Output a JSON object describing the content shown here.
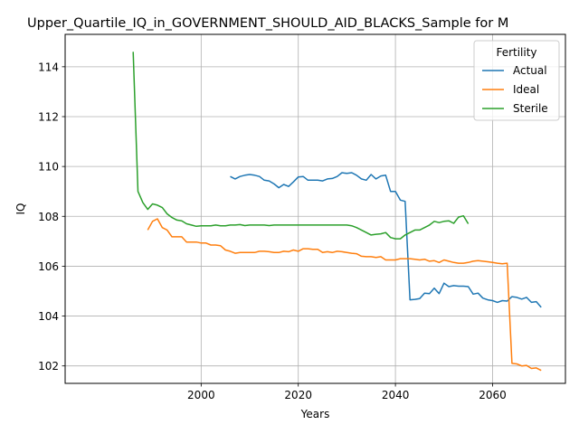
{
  "chart_data": {
    "type": "line",
    "title": "Upper_Quartile_IQ_in_GOVERNMENT_SHOULD_AID_BLACKS_Sample for M",
    "xlabel": "Years",
    "ylabel": "IQ",
    "xlim": [
      1972,
      2075
    ],
    "ylim": [
      101.3,
      115.3
    ],
    "xticks": [
      2000,
      2020,
      2040,
      2060
    ],
    "yticks": [
      102,
      104,
      106,
      108,
      110,
      112,
      114
    ],
    "grid": true,
    "legend": {
      "title": "Fertility",
      "placement": "top-right"
    },
    "series": [
      {
        "name": "Actual",
        "color": "#1f77b4",
        "x": [
          2006,
          2007,
          2008,
          2009,
          2010,
          2011,
          2012,
          2013,
          2014,
          2015,
          2016,
          2017,
          2018,
          2019,
          2020,
          2021,
          2022,
          2023,
          2024,
          2025,
          2026,
          2027,
          2028,
          2029,
          2030,
          2031,
          2032,
          2033,
          2034,
          2035,
          2036,
          2037,
          2038,
          2039,
          2040,
          2041,
          2042,
          2043,
          2044,
          2045,
          2046,
          2047,
          2048,
          2049,
          2050,
          2051,
          2052,
          2053,
          2054,
          2055,
          2056,
          2057,
          2058,
          2059,
          2060,
          2061,
          2062,
          2063,
          2064,
          2065,
          2066,
          2067,
          2068,
          2069,
          2070
        ],
        "y": [
          109.6,
          109.5,
          109.6,
          109.65,
          109.68,
          109.65,
          109.6,
          109.45,
          109.42,
          109.3,
          109.15,
          109.28,
          109.2,
          109.38,
          109.58,
          109.6,
          109.45,
          109.45,
          109.45,
          109.42,
          109.5,
          109.52,
          109.6,
          109.75,
          109.72,
          109.75,
          109.65,
          109.5,
          109.45,
          109.68,
          109.5,
          109.62,
          109.65,
          109.0,
          109.0,
          108.65,
          108.6,
          104.65,
          104.67,
          104.7,
          104.92,
          104.9,
          105.12,
          104.9,
          105.32,
          105.18,
          105.22,
          105.2,
          105.2,
          105.18,
          104.88,
          104.92,
          104.72,
          104.65,
          104.62,
          104.55,
          104.62,
          104.6,
          104.78,
          104.75,
          104.68,
          104.75,
          104.55,
          104.58,
          104.35
        ]
      },
      {
        "name": "Ideal",
        "color": "#ff7f0e",
        "x": [
          1989,
          1990,
          1991,
          1992,
          1993,
          1994,
          1995,
          1996,
          1997,
          1998,
          1999,
          2000,
          2001,
          2002,
          2003,
          2004,
          2005,
          2006,
          2007,
          2008,
          2009,
          2010,
          2011,
          2012,
          2013,
          2014,
          2015,
          2016,
          2017,
          2018,
          2019,
          2020,
          2021,
          2022,
          2023,
          2024,
          2025,
          2026,
          2027,
          2028,
          2029,
          2030,
          2031,
          2032,
          2033,
          2034,
          2035,
          2036,
          2037,
          2038,
          2039,
          2040,
          2041,
          2042,
          2043,
          2044,
          2045,
          2046,
          2047,
          2048,
          2049,
          2050,
          2051,
          2052,
          2053,
          2054,
          2055,
          2056,
          2057,
          2058,
          2059,
          2060,
          2061,
          2062,
          2063,
          2064,
          2065,
          2066,
          2067,
          2068,
          2069,
          2070
        ],
        "y": [
          107.45,
          107.8,
          107.9,
          107.55,
          107.45,
          107.18,
          107.18,
          107.18,
          106.97,
          106.97,
          106.97,
          106.93,
          106.93,
          106.85,
          106.85,
          106.82,
          106.65,
          106.6,
          106.52,
          106.55,
          106.55,
          106.55,
          106.55,
          106.6,
          106.6,
          106.58,
          106.55,
          106.55,
          106.6,
          106.58,
          106.65,
          106.6,
          106.7,
          106.7,
          106.68,
          106.68,
          106.55,
          106.58,
          106.55,
          106.6,
          106.58,
          106.55,
          106.52,
          106.5,
          106.4,
          106.38,
          106.38,
          106.35,
          106.38,
          106.25,
          106.25,
          106.25,
          106.3,
          106.3,
          106.3,
          106.28,
          106.25,
          106.28,
          106.2,
          106.22,
          106.15,
          106.25,
          106.2,
          106.15,
          106.12,
          106.12,
          106.15,
          106.2,
          106.22,
          106.2,
          106.18,
          106.15,
          106.12,
          106.1,
          106.12,
          102.1,
          102.08,
          102.0,
          102.02,
          101.9,
          101.92,
          101.82
        ]
      },
      {
        "name": "Sterile",
        "color": "#2ca02c",
        "x": [
          1986,
          1987,
          1988,
          1989,
          1990,
          1991,
          1992,
          1993,
          1994,
          1995,
          1996,
          1997,
          1998,
          1999,
          2000,
          2001,
          2002,
          2003,
          2004,
          2005,
          2006,
          2007,
          2008,
          2009,
          2010,
          2011,
          2012,
          2013,
          2014,
          2015,
          2016,
          2017,
          2018,
          2019,
          2020,
          2021,
          2022,
          2023,
          2024,
          2025,
          2026,
          2027,
          2028,
          2029,
          2030,
          2031,
          2032,
          2033,
          2034,
          2035,
          2036,
          2037,
          2038,
          2039,
          2040,
          2041,
          2042,
          2043,
          2044,
          2045,
          2046,
          2047,
          2048,
          2049,
          2050,
          2051,
          2052,
          2053,
          2054,
          2055
        ],
        "y": [
          114.6,
          109.0,
          108.55,
          108.28,
          108.5,
          108.45,
          108.35,
          108.1,
          107.95,
          107.85,
          107.82,
          107.7,
          107.65,
          107.6,
          107.62,
          107.62,
          107.62,
          107.65,
          107.62,
          107.62,
          107.65,
          107.65,
          107.67,
          107.63,
          107.65,
          107.65,
          107.65,
          107.65,
          107.63,
          107.65,
          107.65,
          107.65,
          107.65,
          107.65,
          107.65,
          107.65,
          107.65,
          107.65,
          107.65,
          107.65,
          107.65,
          107.65,
          107.65,
          107.65,
          107.65,
          107.62,
          107.55,
          107.45,
          107.35,
          107.25,
          107.28,
          107.3,
          107.35,
          107.15,
          107.1,
          107.1,
          107.25,
          107.35,
          107.45,
          107.45,
          107.55,
          107.65,
          107.8,
          107.75,
          107.8,
          107.82,
          107.72,
          107.97,
          108.02,
          107.7
        ]
      }
    ]
  }
}
